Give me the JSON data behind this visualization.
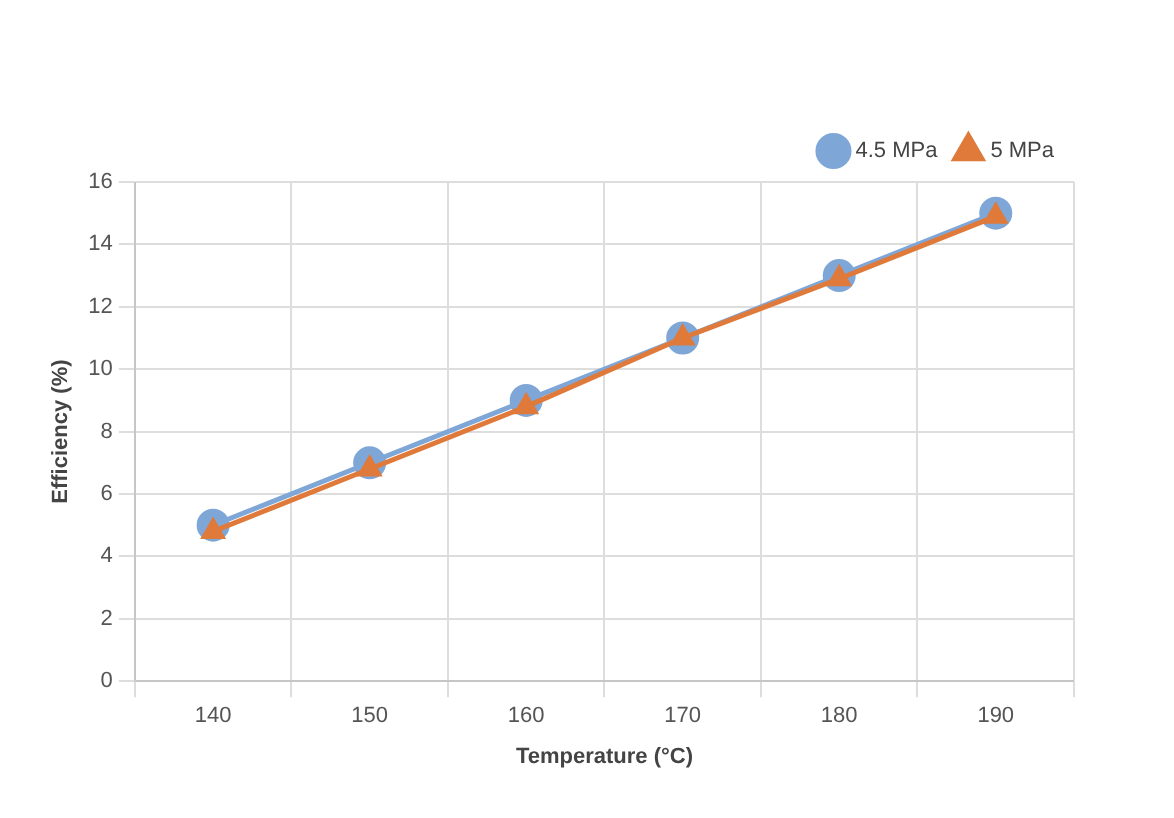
{
  "chart_data": {
    "type": "line",
    "xlabel": "Temperature (°C)",
    "ylabel": "Efficiency (%)",
    "categories": [
      "140",
      "150",
      "160",
      "170",
      "180",
      "190"
    ],
    "series": [
      {
        "name": "4.5 MPa",
        "color": "#7ea6d6",
        "marker": "circle",
        "values": [
          5,
          7,
          9,
          11,
          13,
          15
        ]
      },
      {
        "name": "5 MPa",
        "color": "#e07a3a",
        "marker": "triangle",
        "values": [
          4.8,
          6.8,
          8.8,
          11,
          12.9,
          14.9
        ]
      }
    ],
    "ylim": [
      0,
      16
    ],
    "yticks": [
      0,
      2,
      4,
      6,
      8,
      10,
      12,
      14,
      16
    ],
    "grid": true,
    "legend": "top right"
  }
}
